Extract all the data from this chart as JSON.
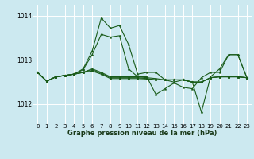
{
  "title": "Graphe pression niveau de la mer (hPa)",
  "bg_color": "#cce9f0",
  "grid_color": "#ffffff",
  "line_color": "#1a5c1a",
  "xlim": [
    -0.5,
    23.5
  ],
  "ylim": [
    1011.55,
    1014.25
  ],
  "yticks": [
    1012,
    1013,
    1014
  ],
  "xticks": [
    0,
    1,
    2,
    3,
    4,
    5,
    6,
    7,
    8,
    9,
    10,
    11,
    12,
    13,
    14,
    15,
    16,
    17,
    18,
    19,
    20,
    21,
    22,
    23
  ],
  "series": [
    [
      1012.72,
      1012.52,
      1012.62,
      1012.65,
      1012.68,
      1012.8,
      1013.2,
      1013.95,
      1013.72,
      1013.78,
      1013.35,
      1012.68,
      1012.72,
      1012.72,
      1012.55,
      1012.5,
      1012.55,
      1012.5,
      1011.82,
      1012.62,
      1012.8,
      1013.12,
      1013.12,
      1012.6
    ],
    [
      1012.72,
      1012.52,
      1012.62,
      1012.65,
      1012.68,
      1012.78,
      1013.12,
      1013.58,
      1013.52,
      1013.55,
      1012.8,
      1012.62,
      1012.62,
      1012.22,
      1012.35,
      1012.48,
      1012.38,
      1012.35,
      1012.6,
      1012.72,
      1012.72,
      1013.12,
      1013.12,
      1012.6
    ],
    [
      1012.72,
      1012.52,
      1012.62,
      1012.65,
      1012.68,
      1012.72,
      1012.8,
      1012.72,
      1012.62,
      1012.62,
      1012.62,
      1012.62,
      1012.6,
      1012.58,
      1012.55,
      1012.55,
      1012.55,
      1012.5,
      1012.5,
      1012.6,
      1012.62,
      1012.62,
      1012.62,
      1012.6
    ],
    [
      1012.72,
      1012.52,
      1012.62,
      1012.65,
      1012.68,
      1012.72,
      1012.78,
      1012.7,
      1012.6,
      1012.6,
      1012.6,
      1012.6,
      1012.58,
      1012.55,
      1012.55,
      1012.55,
      1012.55,
      1012.5,
      1012.5,
      1012.6,
      1012.62,
      1012.62,
      1012.62,
      1012.6
    ],
    [
      1012.72,
      1012.52,
      1012.62,
      1012.65,
      1012.68,
      1012.72,
      1012.75,
      1012.68,
      1012.58,
      1012.58,
      1012.58,
      1012.58,
      1012.57,
      1012.55,
      1012.55,
      1012.55,
      1012.55,
      1012.5,
      1012.5,
      1012.6,
      1012.62,
      1012.62,
      1012.62,
      1012.6
    ]
  ]
}
